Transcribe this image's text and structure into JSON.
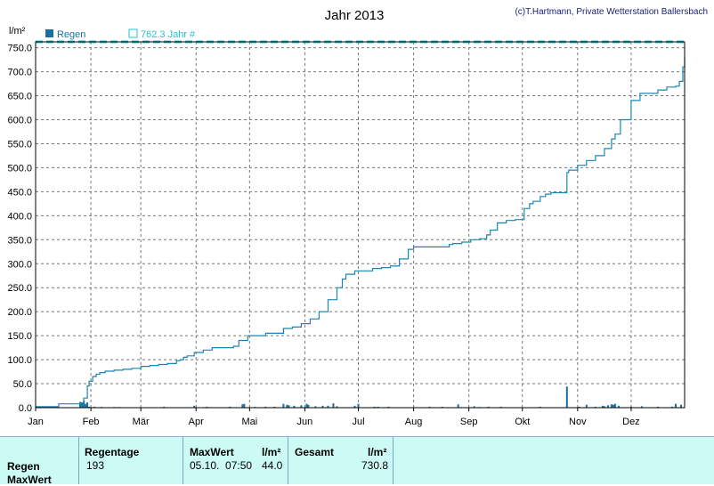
{
  "colors": {
    "series": "#1b86b5",
    "legend_cyan": "#22c3d6",
    "stats_bg": "#ccfbf5"
  },
  "chart_data": {
    "type": "line",
    "title": "Jahr 2013",
    "credit": "(c)T.Hartmann, Private Wetterstation Ballersbach",
    "ylabel": "l/m²",
    "ylim": [
      0,
      762.3
    ],
    "y_ticks": [
      "0.0",
      "50.0",
      "100.0",
      "150.0",
      "200.0",
      "250.0",
      "300.0",
      "350.0",
      "400.0",
      "450.0",
      "500.0",
      "550.0",
      "600.0",
      "650.0",
      "700.0",
      "750.0"
    ],
    "x_months": [
      "Jan",
      "Feb",
      "Mär",
      "Apr",
      "Mai",
      "Jun",
      "Jul",
      "Aug",
      "Sep",
      "Okt",
      "Nov",
      "Dez"
    ],
    "grid": true,
    "legend": [
      {
        "name": "Regen",
        "marker": "filled-square"
      },
      {
        "name": "762.3 Jahr #",
        "marker": "open-square"
      }
    ],
    "reference_line": 762.3,
    "cumulative": {
      "name": "Regen",
      "x_day": [
        1,
        14,
        20,
        26,
        28,
        30,
        31,
        33,
        35,
        37,
        40,
        45,
        50,
        55,
        60,
        65,
        70,
        75,
        80,
        82,
        84,
        86,
        90,
        95,
        100,
        110,
        112,
        115,
        120,
        130,
        135,
        140,
        145,
        150,
        155,
        160,
        165,
        170,
        173,
        175,
        180,
        190,
        195,
        200,
        205,
        210,
        213,
        220,
        230,
        233,
        235,
        240,
        245,
        250,
        254,
        256,
        260,
        265,
        270,
        275,
        278,
        280,
        284,
        287,
        290,
        296,
        299,
        300,
        305,
        310,
        315,
        320,
        324,
        326,
        329,
        335,
        340,
        345,
        350,
        355,
        360,
        362,
        364,
        365
      ],
      "y": [
        2,
        8,
        8,
        10,
        20,
        45,
        55,
        65,
        70,
        73,
        76,
        78,
        80,
        82,
        86,
        88,
        90,
        92,
        98,
        100,
        105,
        108,
        115,
        120,
        125,
        125,
        128,
        140,
        150,
        155,
        155,
        165,
        168,
        175,
        185,
        200,
        225,
        250,
        268,
        278,
        285,
        290,
        292,
        295,
        310,
        330,
        335,
        335,
        335,
        340,
        342,
        345,
        350,
        352,
        360,
        370,
        385,
        390,
        392,
        415,
        425,
        430,
        440,
        445,
        448,
        448,
        490,
        495,
        505,
        515,
        525,
        540,
        560,
        570,
        600,
        640,
        655,
        655,
        662,
        668,
        670,
        680,
        710,
        730
      ]
    },
    "daily": {
      "name": "Regen",
      "days": [
        2,
        10,
        14,
        22,
        25,
        26,
        27,
        28,
        29,
        30,
        31,
        34,
        38,
        45,
        48,
        52,
        60,
        65,
        73,
        80,
        85,
        90,
        97,
        100,
        105,
        110,
        117,
        118,
        124,
        130,
        135,
        136,
        140,
        142,
        143,
        146,
        150,
        153,
        154,
        158,
        162,
        165,
        168,
        170,
        175,
        180,
        182,
        185,
        191,
        193,
        199,
        205,
        213,
        222,
        229,
        233,
        238,
        244,
        247,
        250,
        255,
        262,
        266,
        271,
        278,
        284,
        292,
        297,
        299,
        306,
        310,
        315,
        319,
        320,
        322,
        324,
        325,
        326,
        328,
        335,
        341,
        350,
        358,
        360,
        363
      ],
      "values": [
        1.5,
        1,
        1,
        1,
        1,
        12,
        10,
        14,
        8,
        11,
        2,
        2,
        1.5,
        1.5,
        1.5,
        1,
        1,
        1,
        2,
        1,
        1,
        4,
        2,
        1,
        1,
        2,
        7,
        8,
        1.5,
        2,
        2,
        1,
        8,
        6,
        5,
        4,
        5,
        8,
        6,
        3,
        4,
        4,
        9,
        3,
        1,
        4,
        8,
        1,
        2,
        2,
        2,
        1,
        1,
        2,
        2,
        1,
        7,
        1,
        3,
        1.5,
        2,
        2,
        1,
        1,
        1,
        2,
        1,
        1,
        44,
        2,
        6,
        2,
        4,
        3,
        5,
        7,
        6,
        8,
        4,
        2,
        3,
        2,
        2,
        8,
        6
      ]
    }
  },
  "stats": {
    "headers": {
      "days": "Regentage",
      "max": "MaxWert",
      "unit1": "l/m²",
      "total": "Gesamt",
      "unit2": "l/m²"
    },
    "rows": [
      {
        "label": "Regen",
        "days": "193",
        "max_date": "05.10.  07:50",
        "max_value": "44.0",
        "total": "730.8"
      },
      {
        "label": "MaxWert"
      }
    ]
  }
}
